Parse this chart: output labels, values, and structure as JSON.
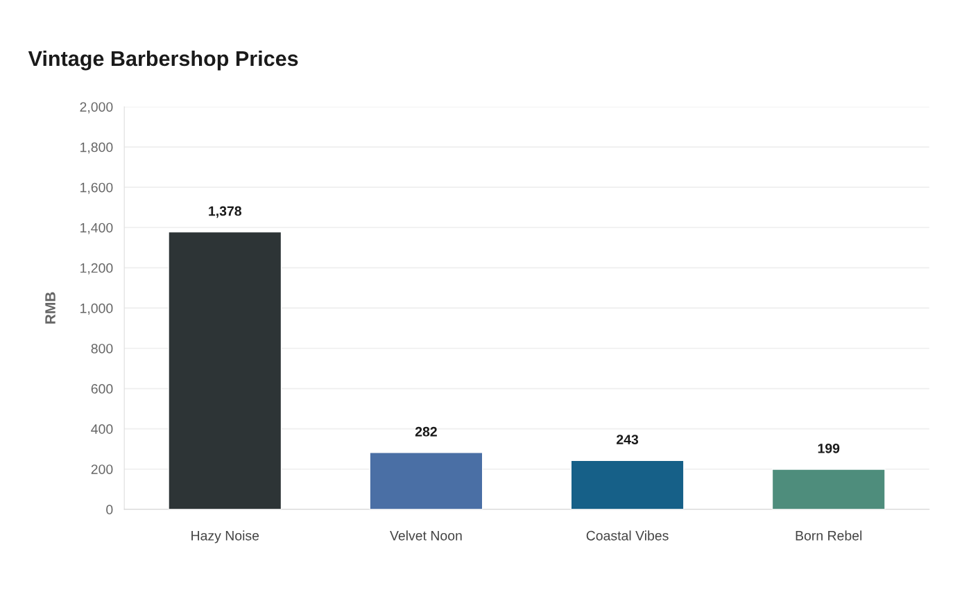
{
  "chart_data": {
    "type": "bar",
    "title": "Vintage Barbershop Prices",
    "ylabel": "RMB",
    "categories": [
      "Hazy Noise",
      "Velvet Noon",
      "Coastal Vibes",
      "Born Rebel"
    ],
    "values": [
      1378,
      282,
      243,
      199
    ],
    "colors": [
      "#2d3436",
      "#4a6fa5",
      "#166088",
      "#4e8d7c"
    ],
    "value_labels": [
      "1,378",
      "282",
      "243",
      "199"
    ],
    "ylim": [
      0,
      2000
    ],
    "yticks": [
      0,
      {
        "value": 200,
        "label": "200"
      },
      {
        "value": 400,
        "label": "400"
      },
      {
        "value": 600,
        "label": "600"
      },
      {
        "value": 800,
        "label": "800"
      },
      {
        "value": 1000,
        "label": "1,000"
      },
      {
        "value": 1200,
        "label": "1,200"
      },
      {
        "value": 1400,
        "label": "1,400"
      },
      {
        "value": 1600,
        "label": "1,600"
      },
      {
        "value": 1800,
        "label": "1,800"
      },
      {
        "value": 2000,
        "label": "2,000"
      }
    ],
    "grid": "y"
  }
}
